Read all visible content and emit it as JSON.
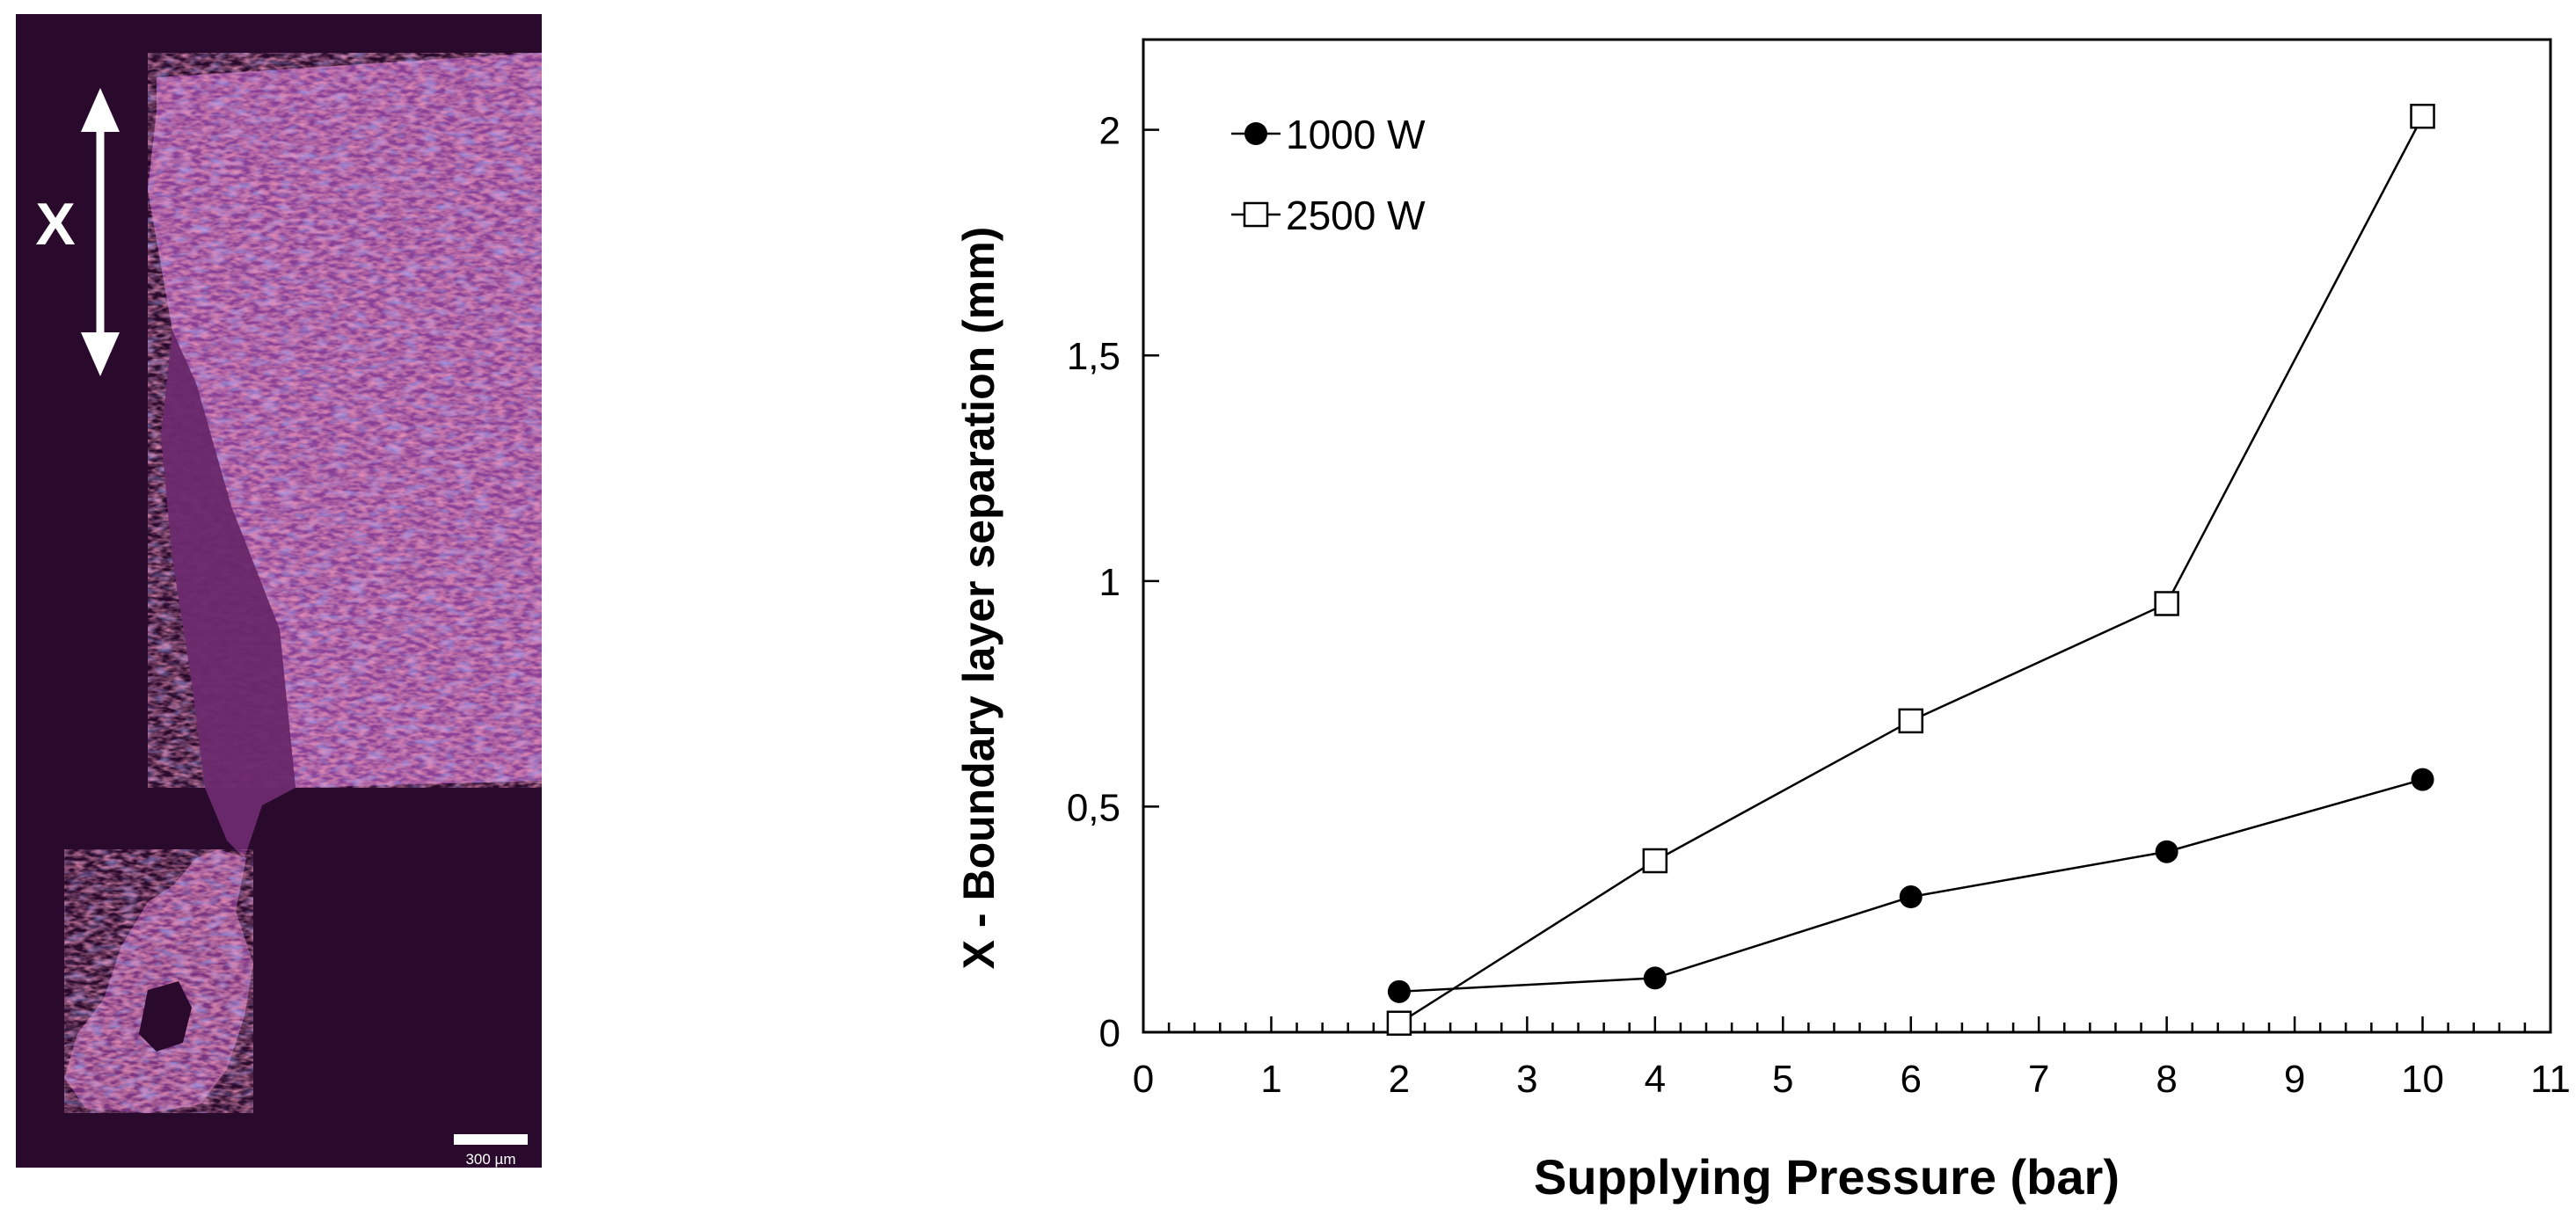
{
  "micrograph": {
    "marker_label": "X",
    "scale_bar_label": "300 µm",
    "colors": {
      "background": "#2a0a2c",
      "tissue_pink": "#d24e8c",
      "tissue_blue": "#6a5ad8"
    }
  },
  "chart_data": {
    "type": "line",
    "title": "",
    "xlabel": "Supplying Pressure (bar)",
    "ylabel": "X - Boundary layer separation (mm)",
    "xlim": [
      0,
      11
    ],
    "ylim": [
      0,
      2.2
    ],
    "x_ticks": [
      0,
      1,
      2,
      3,
      4,
      5,
      6,
      7,
      8,
      9,
      10,
      11
    ],
    "x_tick_labels": [
      "0",
      "1",
      "2",
      "3",
      "4",
      "5",
      "6",
      "7",
      "8",
      "9",
      "10",
      "11"
    ],
    "y_ticks": [
      0,
      0.5,
      1,
      1.5,
      2
    ],
    "y_tick_labels": [
      "0",
      "0,5",
      "1",
      "1,5",
      "2"
    ],
    "x_minor_step": 0.2,
    "grid": false,
    "legend_position": "top-left",
    "series": [
      {
        "name": "1000 W",
        "marker": "filled-circle",
        "color": "#000000",
        "x": [
          2,
          4,
          6,
          8,
          10
        ],
        "y": [
          0.09,
          0.12,
          0.3,
          0.4,
          0.56
        ]
      },
      {
        "name": "2500 W",
        "marker": "open-square",
        "color": "#000000",
        "x": [
          2,
          4,
          6,
          8,
          10
        ],
        "y": [
          0.02,
          0.38,
          0.69,
          0.95,
          2.03
        ]
      }
    ]
  }
}
